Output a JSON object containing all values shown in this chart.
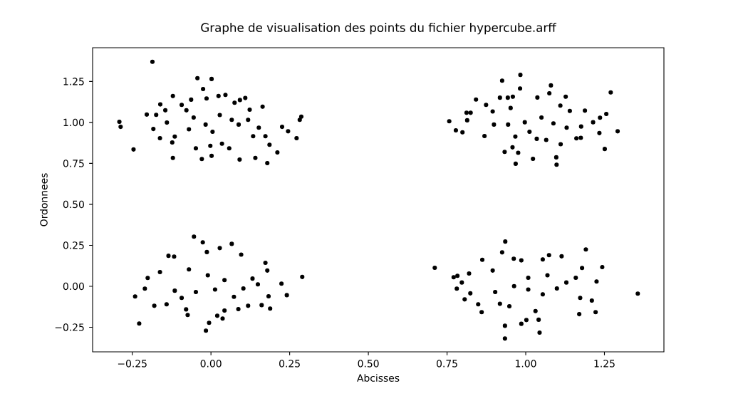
{
  "chart_data": {
    "type": "scatter",
    "title": "Graphe de visualisation des points du fichier hypercube.arff",
    "xlabel": "Abcisses",
    "ylabel": "Ordonnees",
    "color": "#000000",
    "marker": "circle",
    "xlim": [
      -0.376,
      1.439
    ],
    "ylim": [
      -0.4,
      1.456
    ],
    "xticks": [
      {
        "value": -0.25,
        "label": "−0.25"
      },
      {
        "value": 0,
        "label": "0.00"
      },
      {
        "value": 0.25,
        "label": "0.25"
      },
      {
        "value": 0.5,
        "label": "0.50"
      },
      {
        "value": 0.75,
        "label": "0.75"
      },
      {
        "value": 1,
        "label": "1.00"
      },
      {
        "value": 1.25,
        "label": "1.25"
      }
    ],
    "yticks": [
      {
        "value": -0.25,
        "label": "−0.25"
      },
      {
        "value": 0,
        "label": "0.00"
      },
      {
        "value": 0.25,
        "label": "0.25"
      },
      {
        "value": 0.5,
        "label": "0.50"
      },
      {
        "value": 0.75,
        "label": "0.75"
      },
      {
        "value": 1,
        "label": "1.00"
      },
      {
        "value": 1.25,
        "label": "1.25"
      }
    ],
    "x": [
      -0.186,
      -0.043,
      0.002,
      -0.025,
      -0.121,
      0.046,
      0.109,
      0.092,
      0.164,
      -0.161,
      -0.204,
      -0.174,
      -0.291,
      -0.287,
      -0.183,
      -0.162,
      -0.14,
      -0.246,
      -0.121,
      -0.029,
      0.002,
      0.091,
      0.141,
      0.179,
      0.211,
      0.272,
      0.226,
      0.245,
      0.282,
      0.287,
      0.152,
      0.173,
      0.134,
      0.186,
      0.118,
      0.123,
      0.075,
      -0.093,
      -0.063,
      -0.014,
      0.024,
      -0.055,
      -0.017,
      0.028,
      0.066,
      -0.07,
      0.005,
      0.088,
      -0.048,
      -0.002,
      0.058,
      -0.115,
      -0.078,
      -0.145,
      0.035,
      -0.123,
      0.983,
      0.925,
      0.982,
      1.08,
      1.075,
      1.127,
      1.27,
      1.037,
      0.842,
      0.757,
      0.778,
      0.799,
      0.812,
      0.825,
      0.814,
      0.869,
      0.874,
      0.918,
      0.943,
      0.959,
      0.933,
      0.958,
      0.976,
      0.968,
      1.023,
      1.097,
      1.098,
      1.251,
      1.292,
      1.256,
      1.236,
      1.188,
      1.214,
      1.234,
      1.175,
      1.161,
      1.176,
      1.14,
      1.11,
      1.13,
      1.111,
      1.035,
      1.065,
      1.05,
      0.997,
      0.944,
      0.899,
      0.952,
      1.088,
      1.012,
      0.967,
      0.895,
      -0.054,
      -0.026,
      0.066,
      0.028,
      -0.013,
      -0.135,
      -0.117,
      0.096,
      0.173,
      0.29,
      0.224,
      0.241,
      0.183,
      0.188,
      0.161,
      -0.241,
      -0.228,
      -0.201,
      -0.21,
      -0.18,
      -0.162,
      -0.016,
      -0.006,
      -0.074,
      -0.079,
      0.037,
      0.02,
      0.043,
      0.087,
      0.118,
      0.132,
      0.149,
      0.179,
      -0.141,
      -0.01,
      0.043,
      -0.048,
      0.013,
      0.073,
      -0.093,
      -0.115,
      -0.07,
      0.103,
      0.935,
      1.191,
      0.711,
      1.243,
      1.356,
      0.925,
      0.862,
      0.771,
      0.783,
      0.797,
      0.781,
      0.806,
      0.824,
      0.82,
      0.849,
      0.86,
      0.934,
      0.934,
      0.986,
      1.002,
      1.044,
      1.041,
      1.17,
      1.222,
      1.21,
      1.225,
      1.179,
      1.159,
      1.129,
      1.173,
      1.074,
      1.054,
      0.986,
      0.962,
      1.114,
      1.008,
      0.963,
      1.008,
      1.054,
      0.903,
      1.099,
      1.069,
      0.918,
      1.031,
      0.948,
      0.895
    ],
    "values": [
      1.37,
      1.27,
      1.265,
      1.204,
      1.161,
      1.168,
      1.149,
      1.137,
      1.096,
      1.11,
      1.048,
      1.046,
      1.004,
      0.973,
      0.96,
      0.904,
      0.999,
      0.835,
      0.783,
      0.777,
      0.796,
      0.773,
      0.783,
      0.752,
      0.817,
      0.904,
      0.973,
      0.946,
      1.016,
      1.035,
      0.968,
      0.916,
      0.916,
      0.864,
      1.016,
      1.078,
      1.12,
      1.107,
      1.139,
      1.146,
      1.161,
      1.03,
      0.987,
      1.045,
      1.016,
      0.958,
      0.943,
      0.987,
      0.842,
      0.857,
      0.842,
      0.914,
      1.074,
      1.074,
      0.87,
      0.878,
      1.29,
      1.255,
      1.207,
      1.226,
      1.178,
      1.157,
      1.183,
      1.152,
      1.14,
      1.007,
      0.952,
      0.94,
      1.059,
      1.059,
      1.013,
      0.917,
      1.107,
      1.151,
      1.151,
      1.157,
      0.82,
      0.848,
      0.815,
      0.748,
      0.778,
      0.787,
      0.742,
      0.838,
      0.946,
      1.052,
      1.029,
      1.072,
      1.001,
      0.935,
      0.906,
      0.903,
      0.975,
      1.07,
      1.103,
      0.968,
      0.867,
      0.9,
      0.893,
      1.03,
      1.001,
      0.987,
      0.987,
      1.088,
      0.994,
      0.943,
      0.914,
      1.067,
      0.303,
      0.268,
      0.259,
      0.233,
      0.209,
      0.186,
      0.181,
      0.193,
      0.143,
      0.057,
      0.016,
      -0.054,
      -0.061,
      -0.136,
      -0.115,
      -0.062,
      -0.227,
      0.051,
      -0.014,
      -0.119,
      0.087,
      -0.271,
      -0.223,
      -0.175,
      -0.141,
      -0.197,
      -0.18,
      -0.148,
      -0.139,
      -0.119,
      0.047,
      0.012,
      0.096,
      -0.11,
      0.067,
      0.038,
      -0.035,
      -0.02,
      -0.064,
      -0.071,
      -0.027,
      0.103,
      -0.013,
      0.273,
      0.225,
      0.113,
      0.117,
      -0.045,
      0.207,
      0.162,
      0.055,
      0.064,
      0.023,
      -0.014,
      -0.08,
      -0.043,
      0.078,
      -0.11,
      -0.158,
      -0.241,
      -0.319,
      -0.229,
      -0.206,
      -0.283,
      -0.204,
      -0.17,
      -0.158,
      -0.087,
      0.029,
      0.112,
      0.052,
      0.023,
      -0.071,
      0.19,
      0.164,
      0.158,
      0.168,
      0.183,
      0.052,
      0.001,
      -0.02,
      -0.049,
      -0.035,
      -0.013,
      0.067,
      -0.107,
      -0.151,
      -0.122,
      0.096
    ]
  }
}
